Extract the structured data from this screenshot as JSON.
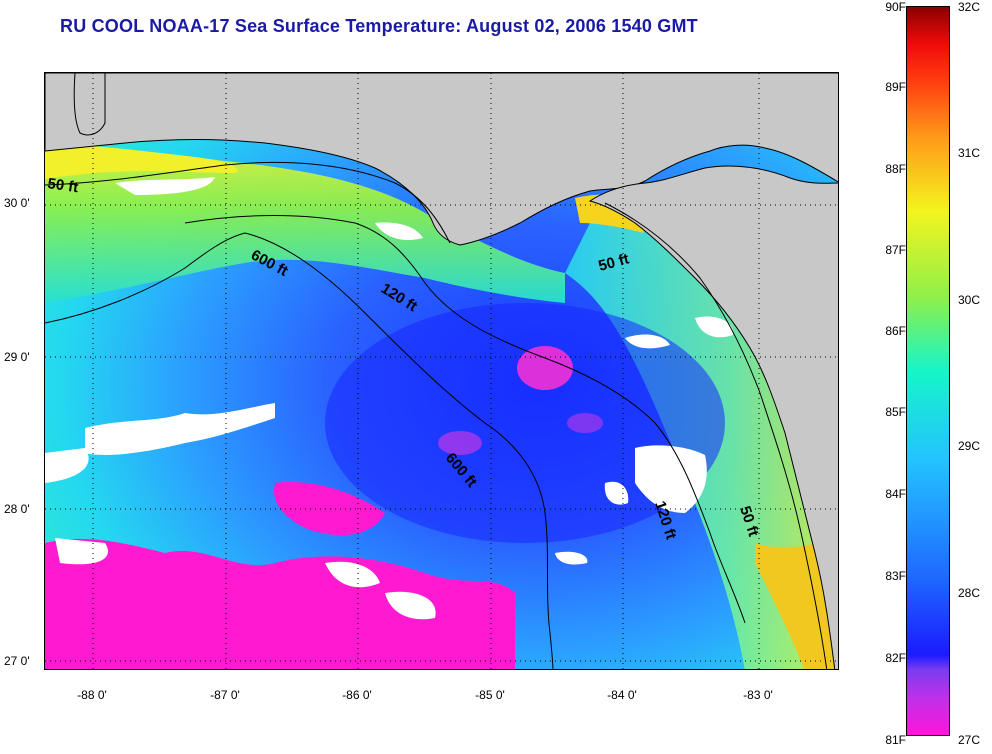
{
  "title": "RU COOL  NOAA-17  Sea Surface Temperature:  August 02, 2006 1540 GMT",
  "map": {
    "y_ticks": [
      "30 0'",
      "29 0'",
      "28 0'",
      "27 0'"
    ],
    "x_ticks": [
      "-88 0'",
      "-87 0'",
      "-86 0'",
      "-85 0'",
      "-84 0'",
      "-83 0'"
    ],
    "contour_labels": [
      "50 ft",
      "600 ft",
      "120 ft",
      "50 ft",
      "600 ft",
      "120 ft",
      "50 ft"
    ],
    "colors": {
      "land": "#c8c8c8",
      "cloud": "#ffffff",
      "coast": "#000000"
    }
  },
  "colorbar": {
    "fahrenheit_labels": [
      "90F",
      "89F",
      "88F",
      "87F",
      "86F",
      "85F",
      "84F",
      "83F",
      "82F",
      "81F"
    ],
    "celsius_labels": [
      "32C",
      "31C",
      "30C",
      "29C",
      "28C",
      "27C"
    ]
  }
}
